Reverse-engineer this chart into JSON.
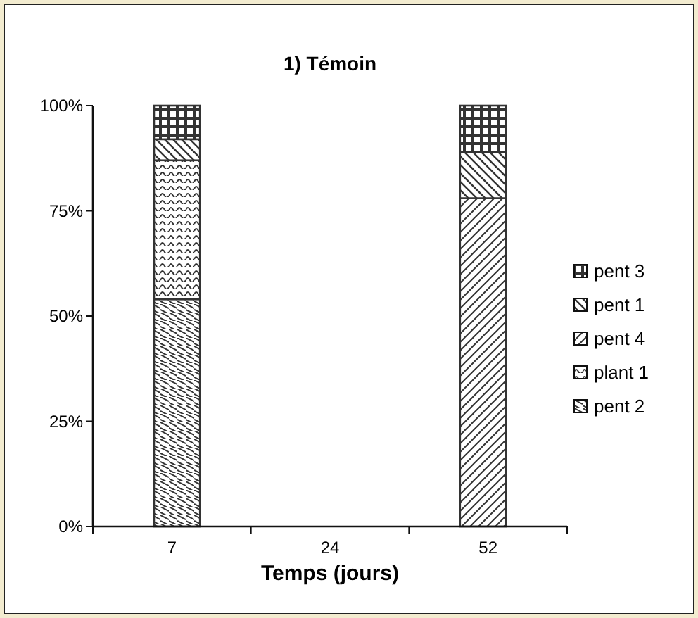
{
  "chart_data": {
    "type": "bar",
    "title": "1) Témoin",
    "xlabel": "Temps (jours)",
    "categories": [
      "7",
      "24",
      "52"
    ],
    "stacked": true,
    "series": [
      {
        "name": "pent 2",
        "color": "#333333",
        "values": [
          54,
          null,
          0
        ]
      },
      {
        "name": "plant 1",
        "color": "#333333",
        "values": [
          33,
          null,
          0
        ]
      },
      {
        "name": "pent 4",
        "color": "#333333",
        "values": [
          0,
          null,
          78
        ]
      },
      {
        "name": "pent 1",
        "color": "#333333",
        "values": [
          5,
          null,
          11
        ]
      },
      {
        "name": "pent 3",
        "color": "#333333",
        "values": [
          8,
          null,
          11
        ]
      }
    ],
    "ylim": [
      0,
      100
    ],
    "yticks": [
      {
        "value": 0,
        "label": "0%"
      },
      {
        "value": 25,
        "label": "25%"
      },
      {
        "value": 50,
        "label": "50%"
      },
      {
        "value": 75,
        "label": "75%"
      },
      {
        "value": 100,
        "label": "100%"
      }
    ],
    "grid": false,
    "legend": "right"
  }
}
